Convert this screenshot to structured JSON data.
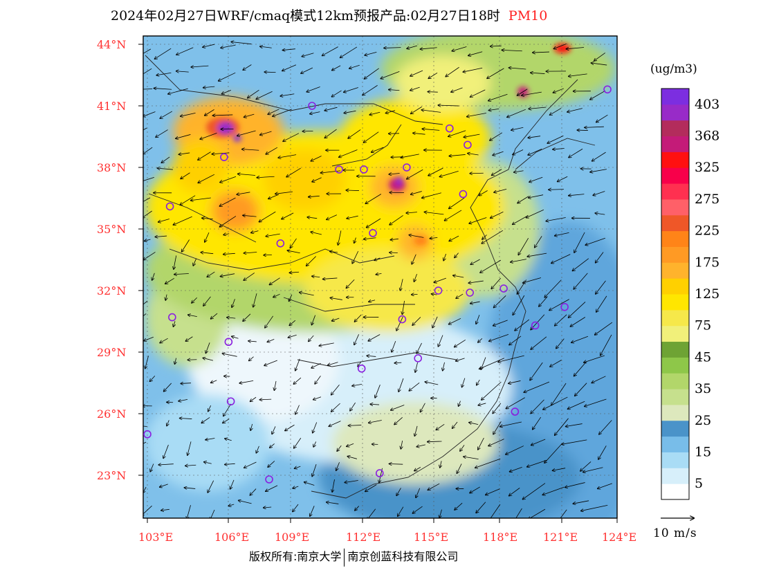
{
  "title": {
    "main": "2024年02月27日WRF/cmaq模式12km预报产品:02月27日18时",
    "variable": "PM10"
  },
  "map": {
    "extent": {
      "lon": [
        102.8,
        124
      ],
      "lat": [
        21.2,
        44.4
      ]
    },
    "lat_ticks": [
      "44°N",
      "41°N",
      "38°N",
      "35°N",
      "32°N",
      "29°N",
      "26°N",
      "23°N"
    ],
    "lat_values": [
      44,
      41,
      38,
      35,
      32,
      29,
      26,
      23
    ],
    "lon_ticks": [
      "103°E",
      "106°E",
      "109°E",
      "112°E",
      "115°E",
      "118°E",
      "121°E",
      "124°E"
    ],
    "lon_values": [
      103,
      106,
      109,
      112,
      115,
      118,
      121,
      124
    ],
    "cities": [
      [
        103.0,
        25.0
      ],
      [
        104.1,
        30.7
      ],
      [
        106.6,
        29.5
      ],
      [
        106.7,
        26.6
      ],
      [
        108.4,
        22.8
      ],
      [
        104.0,
        36.1
      ],
      [
        106.4,
        38.5
      ],
      [
        108.9,
        34.3
      ],
      [
        110.3,
        41.0
      ],
      [
        111.5,
        37.9
      ],
      [
        112.6,
        37.9
      ],
      [
        112.5,
        28.2
      ],
      [
        113.0,
        34.8
      ],
      [
        113.3,
        23.1
      ],
      [
        114.3,
        30.6
      ],
      [
        114.5,
        38.0
      ],
      [
        115.0,
        28.7
      ],
      [
        115.9,
        32.0
      ],
      [
        116.4,
        39.9
      ],
      [
        117.2,
        39.1
      ],
      [
        117.0,
        36.7
      ],
      [
        117.3,
        31.9
      ],
      [
        118.8,
        32.1
      ],
      [
        119.3,
        26.1
      ],
      [
        120.2,
        30.3
      ],
      [
        121.5,
        31.2
      ],
      [
        123.4,
        41.8
      ]
    ]
  },
  "colorbar": {
    "unit": "(ug/m3)",
    "colors": [
      "#ffffff",
      "#d7effa",
      "#a9dcf5",
      "#78bde9",
      "#4a93c9",
      "#dde8bd",
      "#c6e08d",
      "#b2d66a",
      "#8ec749",
      "#6ea334",
      "#f1f07a",
      "#f6e84a",
      "#ffe600",
      "#ffd000",
      "#ffb32c",
      "#ff9a24",
      "#ff8418",
      "#ef5728",
      "#ff6068",
      "#ff3050",
      "#f8004a",
      "#ff1010",
      "#c41b78",
      "#b32c5c",
      "#982bc8",
      "#7c2ee0"
    ],
    "labels": [
      "5",
      "15",
      "25",
      "35",
      "45",
      "75",
      "125",
      "175",
      "225",
      "275",
      "325",
      "368",
      "403"
    ]
  },
  "wind_reference": {
    "label": "10 m/s"
  },
  "footer": {
    "copyright": "版权所有:南京大学",
    "company": "南京创蓝科技有限公司"
  }
}
